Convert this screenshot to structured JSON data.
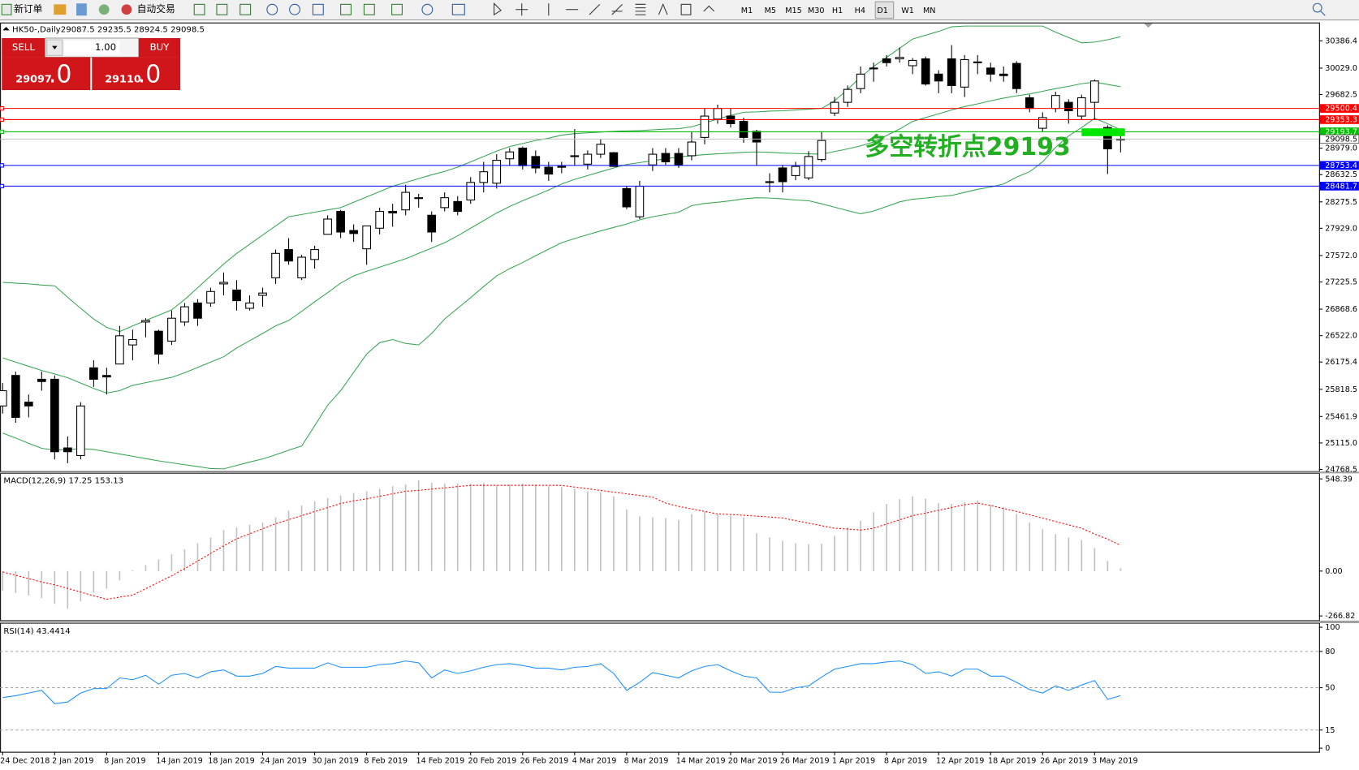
{
  "toolbar": {
    "new_order": "新订单",
    "auto_trade": "自动交易",
    "timeframes": [
      "M1",
      "M5",
      "M15",
      "M30",
      "H1",
      "H4",
      "D1",
      "W1",
      "MN"
    ]
  },
  "trade_panel": {
    "sell": "SELL",
    "buy": "BUY",
    "lot": "1.00",
    "sell_price": "29097",
    "sell_fraction": ".0",
    "buy_price": "29110",
    "buy_fraction": ".0"
  },
  "chart_data": [
    {
      "type": "candlestick",
      "title": "HK50-,Daily",
      "header_values": "29087.5 29235.5 28924.5 29098.5",
      "categories": [
        "24 Dec 2018",
        null,
        null,
        null,
        "2 Jan 2019",
        null,
        null,
        null,
        "8 Jan 2019",
        null,
        null,
        null,
        "14 Jan 2019",
        null,
        null,
        null,
        "18 Jan 2019",
        null,
        null,
        null,
        "24 Jan 2019",
        null,
        null,
        null,
        "30 Jan 2019",
        null,
        null,
        null,
        "8 Feb 2019",
        null,
        null,
        null,
        "14 Feb 2019",
        null,
        null,
        null,
        "20 Feb 2019",
        null,
        null,
        null,
        "26 Feb 2019",
        null,
        null,
        null,
        "4 Mar 2019",
        null,
        null,
        null,
        "8 Mar 2019",
        null,
        null,
        null,
        "14 Mar 2019",
        null,
        null,
        null,
        "20 Mar 2019",
        null,
        null,
        null,
        "26 Mar 2019",
        null,
        null,
        null,
        "1 Apr 2019",
        null,
        null,
        null,
        "8 Apr 2019",
        null,
        null,
        null,
        "12 Apr 2019",
        null,
        null,
        null,
        "18 Apr 2019",
        null,
        null,
        null,
        "26 Apr 2019",
        null,
        null,
        null,
        "3 May 2019",
        null,
        null
      ],
      "open": [
        25600,
        26000,
        25650,
        25950,
        25950,
        25050,
        24950,
        26100,
        26000,
        26150,
        26400,
        26700,
        26580,
        26450,
        26700,
        26950,
        26950,
        27200,
        27120,
        26880,
        27050,
        27280,
        27650,
        27280,
        27520,
        27850,
        28150,
        27900,
        27660,
        27930,
        28150,
        28170,
        28330,
        28100,
        28200,
        28280,
        28300,
        28530,
        28520,
        28840,
        28980,
        28870,
        28730,
        28740,
        28880,
        28770,
        28900,
        28920,
        28450,
        28080,
        28760,
        28910,
        28910,
        28880,
        29120,
        29360,
        29400,
        29330,
        29200,
        28540,
        28720,
        28620,
        28590,
        28830,
        29440,
        29580,
        29760,
        30030,
        30150,
        30150,
        30060,
        30150,
        29950,
        30150,
        29780,
        30100,
        30030,
        29950,
        30090,
        29640,
        29240,
        29500,
        29580,
        29400,
        29580,
        29250,
        29087.5
      ],
      "high": [
        25900,
        26050,
        25750,
        26050,
        26000,
        25200,
        25650,
        26200,
        26100,
        26650,
        26600,
        26750,
        26600,
        26850,
        26950,
        27000,
        27150,
        27350,
        27250,
        27050,
        27150,
        27650,
        27800,
        27580,
        27700,
        28100,
        28170,
        27980,
        27960,
        28200,
        28250,
        28500,
        28380,
        28150,
        28400,
        28350,
        28600,
        28800,
        28900,
        28980,
        29000,
        28950,
        28800,
        28800,
        29230,
        28950,
        29100,
        28930,
        28480,
        28550,
        28980,
        28980,
        28980,
        29200,
        29500,
        29550,
        29500,
        29380,
        29220,
        28650,
        28760,
        28800,
        28940,
        29200,
        29650,
        29800,
        30050,
        30100,
        30200,
        30300,
        30160,
        30180,
        30000,
        30330,
        30200,
        30200,
        30100,
        30050,
        30120,
        29680,
        29450,
        29720,
        29620,
        29680,
        29880,
        29280,
        29235.5
      ],
      "low": [
        25500,
        25380,
        25450,
        25800,
        24900,
        24850,
        24900,
        25850,
        25750,
        26150,
        26200,
        26500,
        26150,
        26400,
        26650,
        26650,
        26900,
        27050,
        26850,
        26850,
        26900,
        27200,
        27450,
        27250,
        27400,
        27850,
        27800,
        27750,
        27450,
        27850,
        27950,
        28100,
        28200,
        27750,
        28150,
        28100,
        28250,
        28400,
        28450,
        28750,
        28700,
        28650,
        28550,
        28650,
        28750,
        28700,
        28850,
        28740,
        28180,
        28050,
        28680,
        28760,
        28720,
        28820,
        29030,
        29300,
        29250,
        29050,
        28750,
        28400,
        28400,
        28560,
        28560,
        28800,
        29400,
        29520,
        29700,
        29850,
        30050,
        30100,
        29950,
        29800,
        29700,
        29700,
        29650,
        29950,
        29850,
        29850,
        29700,
        29450,
        29200,
        29450,
        29300,
        29350,
        29350,
        28640,
        28924.5
      ],
      "close": [
        25800,
        25450,
        25600,
        25920,
        25000,
        25000,
        25600,
        25950,
        25980,
        26520,
        26470,
        26720,
        26280,
        26750,
        26900,
        26750,
        27100,
        27220,
        26980,
        26950,
        27080,
        27600,
        27500,
        27550,
        27650,
        28050,
        27880,
        27860,
        27960,
        28150,
        28130,
        28400,
        28320,
        27880,
        28330,
        28150,
        28530,
        28670,
        28820,
        28930,
        28750,
        28720,
        28640,
        28730,
        28870,
        28900,
        29030,
        28740,
        28210,
        28480,
        28900,
        28800,
        28760,
        29060,
        29400,
        29500,
        29300,
        29120,
        29060,
        28530,
        28540,
        28740,
        28870,
        29080,
        29580,
        29750,
        29950,
        30020,
        30100,
        30170,
        30130,
        29820,
        29860,
        29800,
        30140,
        30110,
        29950,
        29930,
        29760,
        29500,
        29380,
        29670,
        29470,
        29640,
        29860,
        28970,
        29098.5
      ],
      "up_color": "#ffffff",
      "down_color": "#000000",
      "edge_color": "#000000",
      "bands": [
        {
          "color": "#3aa655",
          "values": [
            27220,
            27210,
            27200,
            27185,
            27175,
            27025,
            26880,
            26740,
            26630,
            26575,
            26650,
            26720,
            26790,
            26860,
            26995,
            27150,
            27305,
            27460,
            27600,
            27720,
            27840,
            27960,
            28080,
            28110,
            28140,
            28170,
            28200,
            28270,
            28340,
            28410,
            28480,
            28530,
            28580,
            28630,
            28675,
            28730,
            28800,
            28870,
            28940,
            29000,
            29040,
            29080,
            29110,
            29150,
            29170,
            29180,
            29190,
            29200,
            29205,
            29210,
            29220,
            29230,
            29235,
            29260,
            29310,
            29360,
            29410,
            29450,
            29455,
            29465,
            29470,
            29480,
            29490,
            29500,
            29600,
            29750,
            29910,
            30050,
            30170,
            30290,
            30410,
            30460,
            30510,
            30570,
            30580,
            30580,
            30580,
            30580,
            30580,
            30580,
            30580,
            30500,
            30430,
            30360,
            30370,
            30400,
            30440
          ]
        },
        {
          "color": "#3aa655",
          "values": [
            26230,
            26175,
            26120,
            26065,
            26020,
            25970,
            25900,
            25830,
            25770,
            25800,
            25870,
            25905,
            25940,
            25975,
            26035,
            26105,
            26175,
            26245,
            26360,
            26455,
            26550,
            26650,
            26720,
            26840,
            26965,
            27085,
            27210,
            27305,
            27365,
            27420,
            27475,
            27530,
            27600,
            27670,
            27740,
            27830,
            27930,
            28030,
            28130,
            28215,
            28290,
            28360,
            28430,
            28510,
            28570,
            28620,
            28670,
            28720,
            28765,
            28790,
            28815,
            28840,
            28865,
            28880,
            28895,
            28905,
            28915,
            28925,
            28930,
            28925,
            28915,
            28910,
            28905,
            28900,
            28935,
            28970,
            29010,
            29060,
            29145,
            29230,
            29330,
            29380,
            29430,
            29480,
            29525,
            29560,
            29600,
            29635,
            29665,
            29690,
            29725,
            29760,
            29790,
            29825,
            29845,
            29815,
            29785
          ]
        },
        {
          "color": "#3aa655",
          "values": [
            25245,
            25180,
            25110,
            25045,
            25020,
            25030,
            25040,
            25030,
            25000,
            24970,
            24940,
            24910,
            24880,
            24855,
            24830,
            24805,
            24780,
            24775,
            24820,
            24865,
            24905,
            24960,
            25020,
            25075,
            25340,
            25610,
            25800,
            26040,
            26280,
            26430,
            26470,
            26420,
            26400,
            26550,
            26740,
            26880,
            27020,
            27165,
            27305,
            27400,
            27480,
            27570,
            27655,
            27740,
            27795,
            27845,
            27895,
            27940,
            27985,
            28040,
            28080,
            28110,
            28140,
            28225,
            28255,
            28270,
            28290,
            28315,
            28330,
            28325,
            28315,
            28300,
            28290,
            28250,
            28205,
            28160,
            28120,
            28155,
            28215,
            28275,
            28310,
            28325,
            28345,
            28360,
            28400,
            28440,
            28470,
            28510,
            28600,
            28670,
            28800,
            28990,
            29140,
            29250,
            29370,
            29300,
            29220
          ]
        }
      ],
      "levels": [
        {
          "value": 29500.4,
          "color": "#ff0000"
        },
        {
          "value": 29353.3,
          "color": "#ff0000"
        },
        {
          "value": 29193.7,
          "color": "#00c000"
        },
        {
          "value": 28753.4,
          "color": "#0000ff"
        },
        {
          "value": 28481.7,
          "color": "#0000ff"
        }
      ],
      "current_price": 29098.5,
      "current_price_color": "#c0c0c0",
      "annotation": "多空转折点29193",
      "annotation_color": "#22b022",
      "marker_color": "#00e600",
      "ylim": [
        24745,
        30615
      ],
      "yticks": [
        30386.4,
        {
          "value": 30029.0,
          "label": "30029.0"
        },
        29682.5,
        {
          "value": 28979.0,
          "label": "28979.0"
        },
        28632.5,
        28275.5,
        {
          "value": 27929.0,
          "label": "27929.0"
        },
        {
          "value": 27572.0,
          "label": "27572.0"
        },
        27225.5,
        26868.6,
        {
          "value": 26522.0,
          "label": "26522.0"
        },
        26175.4,
        25818.5,
        25461.9,
        {
          "value": 25115.0,
          "label": "25115.0"
        },
        24768.5
      ]
    },
    {
      "type": "macd",
      "title": "MACD(12,26,9) 17.25 153.13",
      "ylim": [
        -292,
        579
      ],
      "yticks": [
        548.39,
        {
          "value": 0,
          "label": "0.00"
        },
        -266.82
      ],
      "series": [
        {
          "color": "#c0c0c0",
          "values": [
            -117,
            -130,
            -145,
            -160,
            -195,
            -225,
            -180,
            -130,
            -105,
            -55,
            5,
            35,
            70,
            100,
            130,
            165,
            200,
            245,
            260,
            275,
            290,
            320,
            360,
            390,
            415,
            435,
            450,
            465,
            475,
            490,
            505,
            515,
            540,
            525,
            520,
            520,
            520,
            525,
            510,
            515,
            520,
            515,
            505,
            500,
            490,
            475,
            470,
            445,
            367,
            326,
            320,
            315,
            305,
            340,
            355,
            340,
            330,
            320,
            225,
            200,
            180,
            165,
            160,
            163,
            210,
            260,
            300,
            350,
            400,
            428,
            445,
            430,
            405,
            400,
            410,
            420,
            393,
            380,
            340,
            290,
            250,
            220,
            200,
            185,
            138,
            61,
            17.25
          ]
        },
        {
          "color": "#ff0000",
          "values": [
            -5,
            -25,
            -45,
            -65,
            -82,
            -103,
            -125,
            -147,
            -168,
            -155,
            -143,
            -105,
            -66,
            -28,
            15,
            60,
            105,
            150,
            192,
            222,
            252,
            282,
            306,
            330,
            354,
            378,
            402,
            418,
            430,
            445,
            460,
            475,
            480,
            488,
            495,
            503,
            510,
            510,
            510,
            510,
            510,
            510,
            510,
            510,
            500,
            490,
            480,
            470,
            460,
            450,
            440,
            405,
            385,
            370,
            355,
            340,
            337,
            332,
            327,
            322,
            316,
            300,
            285,
            270,
            255,
            250,
            244,
            255,
            280,
            305,
            330,
            345,
            362,
            378,
            395,
            405,
            390,
            372,
            355,
            335,
            315,
            295,
            275,
            255,
            220,
            190,
            153.13
          ]
        }
      ]
    },
    {
      "type": "line",
      "title": "RSI(14) 43.4414",
      "ylim": [
        -3,
        103
      ],
      "yticks": [
        100,
        80,
        50,
        15,
        0
      ],
      "color": "#1e90ff",
      "values": [
        41.9,
        43.4,
        45.6,
        47.8,
        36.8,
        38.2,
        45.6,
        49.3,
        49.3,
        58.1,
        56.6,
        60.3,
        52.9,
        60.3,
        61.8,
        58.1,
        63.2,
        64.7,
        59.6,
        59.6,
        61.8,
        67.6,
        66.2,
        66.2,
        66.2,
        70.6,
        66.9,
        66.9,
        66.9,
        69.1,
        69.9,
        72.1,
        70.6,
        58.1,
        64.7,
        61.8,
        64.0,
        66.9,
        69.1,
        69.9,
        68.4,
        66.2,
        66.2,
        64.7,
        66.9,
        67.6,
        69.9,
        61.8,
        47.8,
        54.4,
        62.5,
        60.3,
        58.1,
        64.0,
        67.6,
        69.1,
        64.0,
        59.6,
        58.1,
        46.3,
        46.3,
        50.0,
        51.5,
        58.8,
        65.4,
        67.6,
        69.9,
        69.9,
        71.3,
        72.1,
        69.1,
        61.8,
        63.2,
        59.6,
        65.4,
        65.4,
        59.6,
        59.6,
        54.4,
        48.5,
        45.6,
        51.5,
        47.8,
        52.2,
        55.9,
        40.4,
        43.4414
      ]
    }
  ]
}
